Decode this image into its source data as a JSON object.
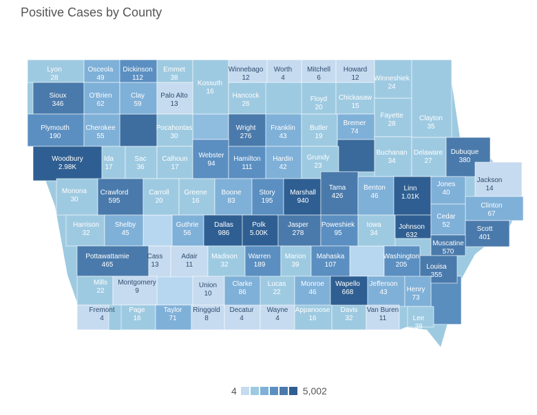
{
  "title": "Positive Cases by County",
  "legend": {
    "min_label": "4",
    "max_label": "5,002",
    "colors": [
      "#c6dbef",
      "#9ecae1",
      "#7fb0d8",
      "#5b8fc1",
      "#4a7aab",
      "#2f5f92"
    ]
  },
  "counties": [
    {
      "name": "Lyon",
      "value": "28"
    },
    {
      "name": "Osceola",
      "value": "49"
    },
    {
      "name": "Dickinson",
      "value": "112"
    },
    {
      "name": "Emmet",
      "value": "38"
    },
    {
      "name": "Kossuth",
      "value": "16"
    },
    {
      "name": "Winnebago",
      "value": "12"
    },
    {
      "name": "Worth",
      "value": "4"
    },
    {
      "name": "Mitchell",
      "value": "6"
    },
    {
      "name": "Howard",
      "value": "12"
    },
    {
      "name": "Winneshiek",
      "value": "24"
    },
    {
      "name": "Sioux",
      "value": "346"
    },
    {
      "name": "O'Brien",
      "value": "62"
    },
    {
      "name": "Clay",
      "value": "59"
    },
    {
      "name": "Palo Alto",
      "value": "13"
    },
    {
      "name": "Hancock",
      "value": "26"
    },
    {
      "name": "Floyd",
      "value": "20"
    },
    {
      "name": "Chickasaw",
      "value": "15"
    },
    {
      "name": "Fayette",
      "value": "28"
    },
    {
      "name": "Clayton",
      "value": "35"
    },
    {
      "name": "Plymouth",
      "value": "190"
    },
    {
      "name": "Cherokee",
      "value": "55"
    },
    {
      "name": "Pocahontas",
      "value": "30"
    },
    {
      "name": "Wright",
      "value": "276"
    },
    {
      "name": "Franklin",
      "value": "43"
    },
    {
      "name": "Butler",
      "value": "19"
    },
    {
      "name": "Bremer",
      "value": "74"
    },
    {
      "name": "Buchanan",
      "value": "34"
    },
    {
      "name": "Delaware",
      "value": "27"
    },
    {
      "name": "Dubuque",
      "value": "380"
    },
    {
      "name": "Woodbury",
      "value": "2.98K"
    },
    {
      "name": "Ida",
      "value": "17"
    },
    {
      "name": "Sac",
      "value": "36"
    },
    {
      "name": "Calhoun",
      "value": "17"
    },
    {
      "name": "Webster",
      "value": "94"
    },
    {
      "name": "Hamilton",
      "value": "111"
    },
    {
      "name": "Hardin",
      "value": "42"
    },
    {
      "name": "Grundy",
      "value": "23"
    },
    {
      "name": "Jackson",
      "value": "14"
    },
    {
      "name": "Monona",
      "value": "30"
    },
    {
      "name": "Crawford",
      "value": "595"
    },
    {
      "name": "Carroll",
      "value": "20"
    },
    {
      "name": "Greene",
      "value": "16"
    },
    {
      "name": "Boone",
      "value": "83"
    },
    {
      "name": "Story",
      "value": "195"
    },
    {
      "name": "Marshall",
      "value": "940"
    },
    {
      "name": "Tama",
      "value": "426"
    },
    {
      "name": "Benton",
      "value": "46"
    },
    {
      "name": "Linn",
      "value": "1.01K"
    },
    {
      "name": "Jones",
      "value": "40"
    },
    {
      "name": "Clinton",
      "value": "67"
    },
    {
      "name": "Harrison",
      "value": "32"
    },
    {
      "name": "Shelby",
      "value": "45"
    },
    {
      "name": "Guthrie",
      "value": "56"
    },
    {
      "name": "Dallas",
      "value": "986"
    },
    {
      "name": "Polk",
      "value": "5.00K"
    },
    {
      "name": "Jasper",
      "value": "278"
    },
    {
      "name": "Poweshiek",
      "value": "95"
    },
    {
      "name": "Iowa",
      "value": "34"
    },
    {
      "name": "Johnson",
      "value": "632"
    },
    {
      "name": "Cedar",
      "value": "52"
    },
    {
      "name": "Scott",
      "value": "401"
    },
    {
      "name": "Muscatine",
      "value": "570"
    },
    {
      "name": "Pottawattamie",
      "value": "465"
    },
    {
      "name": "Cass",
      "value": "13"
    },
    {
      "name": "Adair",
      "value": "11"
    },
    {
      "name": "Madison",
      "value": "32"
    },
    {
      "name": "Warren",
      "value": "189"
    },
    {
      "name": "Marion",
      "value": "39"
    },
    {
      "name": "Mahaska",
      "value": "107"
    },
    {
      "name": "Washington",
      "value": "205"
    },
    {
      "name": "Louisa",
      "value": "355"
    },
    {
      "name": "Mills",
      "value": "22"
    },
    {
      "name": "Montgomery",
      "value": "9"
    },
    {
      "name": "Union",
      "value": "10"
    },
    {
      "name": "Clarke",
      "value": "86"
    },
    {
      "name": "Lucas",
      "value": "22"
    },
    {
      "name": "Monroe",
      "value": "46"
    },
    {
      "name": "Wapello",
      "value": "668"
    },
    {
      "name": "Jefferson",
      "value": "43"
    },
    {
      "name": "Henry",
      "value": "73"
    },
    {
      "name": "Fremont",
      "value": "4"
    },
    {
      "name": "Page",
      "value": "16"
    },
    {
      "name": "Taylor",
      "value": "71"
    },
    {
      "name": "Ringgold",
      "value": "8"
    },
    {
      "name": "Decatur",
      "value": "4"
    },
    {
      "name": "Wayne",
      "value": "4"
    },
    {
      "name": "Appanoose",
      "value": "16"
    },
    {
      "name": "Davis",
      "value": "32"
    },
    {
      "name": "Van Buren",
      "value": "11"
    },
    {
      "name": "Lee",
      "value": "38"
    }
  ]
}
